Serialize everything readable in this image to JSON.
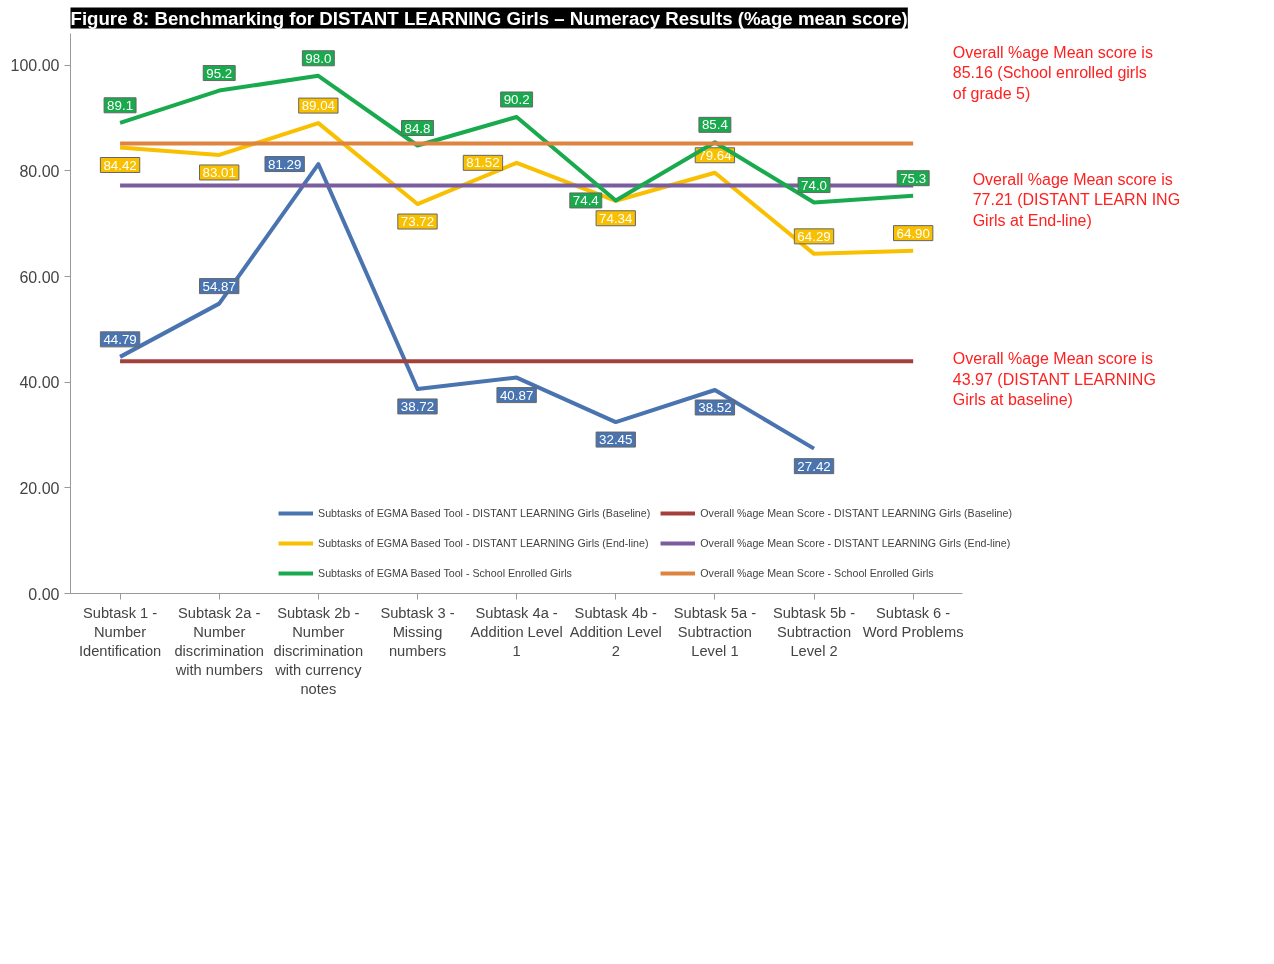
{
  "chart_data": {
    "type": "line",
    "title": "Figure 8: Benchmarking for DISTANT LEARNING Girls – Numeracy Results (%age mean score)",
    "categories": [
      "Subtask 1 - Number Identification",
      "Subtask 2a - Number discrimination with numbers",
      "Subtask 2b - Number discrimination with currency notes",
      "Subtask 3 - Missing numbers",
      "Subtask 4a - Addition Level 1",
      "Subtask 4b - Addition Level 2",
      "Subtask 5a - Subtraction Level 1",
      "Subtask 5b - Subtraction Level 2",
      "Subtask 6 - Word Problems"
    ],
    "series": [
      {
        "name": "Subtasks of EGMA Based Tool - DISTANT LEARNING Girls (Baseline)",
        "color": "#4a74b0",
        "values": [
          44.79,
          54.87,
          81.29,
          38.72,
          40.87,
          32.45,
          38.52,
          27.42,
          null
        ],
        "value_labels": [
          "44.79",
          "54.87",
          "81.29",
          "38.72",
          "40.87",
          "32.45",
          "38.52",
          "27.42",
          null
        ]
      },
      {
        "name": "Overall %age Mean Score - DISTANT LEARNING Girls (Baseline)",
        "color": "#a3403c",
        "values": [
          43.97,
          43.97,
          43.97,
          43.97,
          43.97,
          43.97,
          43.97,
          43.97,
          43.97
        ]
      },
      {
        "name": "Subtasks of EGMA Based Tool - DISTANT LEARNING Girls (End-line)",
        "color": "#f8c000",
        "values": [
          84.42,
          83.01,
          89.04,
          73.72,
          81.52,
          74.34,
          79.64,
          64.29,
          64.9
        ],
        "value_labels": [
          "84.42",
          "83.01",
          "89.04",
          "73.72",
          "81.52",
          "74.34",
          "79.64",
          "64.29",
          "64.90"
        ]
      },
      {
        "name": "Overall %age Mean Score - DISTANT LEARNING Girls (End-line)",
        "color": "#7a5d9e",
        "values": [
          77.21,
          77.21,
          77.21,
          77.21,
          77.21,
          77.21,
          77.21,
          77.21,
          77.21
        ]
      },
      {
        "name": "Subtasks of EGMA Based Tool - School Enrolled Girls",
        "color": "#1aaa4e",
        "values": [
          89.1,
          95.2,
          98.0,
          84.8,
          90.2,
          74.4,
          85.4,
          74.0,
          75.3
        ],
        "value_labels": [
          "89.1",
          "95.2",
          "98.0",
          "84.8",
          "90.2",
          "74.4",
          "85.4",
          "74.0",
          "75.3"
        ]
      },
      {
        "name": "Overall %age Mean Score - School Enrolled Girls",
        "color": "#de8440",
        "values": [
          85.16,
          85.16,
          85.16,
          85.16,
          85.16,
          85.16,
          85.16,
          85.16,
          85.16
        ]
      }
    ],
    "ylim": [
      0,
      106
    ],
    "yticks": [
      {
        "value": 0,
        "label": "0.00"
      },
      {
        "value": 20,
        "label": "20.00"
      },
      {
        "value": 40,
        "label": "40.00"
      },
      {
        "value": 60,
        "label": "60.00"
      },
      {
        "value": 80,
        "label": "80.00"
      },
      {
        "value": 100,
        "label": "100.00"
      }
    ],
    "grid": false,
    "legend": "bottom",
    "marker": "none",
    "line_style": "solid",
    "annotations": [
      "Overall %age Mean score is 85.16 (School enrolled girls of grade 5)",
      "Overall %age Mean score is 77.21 (DISTANT LEARN ING Girls at End-line)",
      "Overall %age Mean score is 43.97 (DISTANT LEARNING Girls at baseline)"
    ]
  }
}
